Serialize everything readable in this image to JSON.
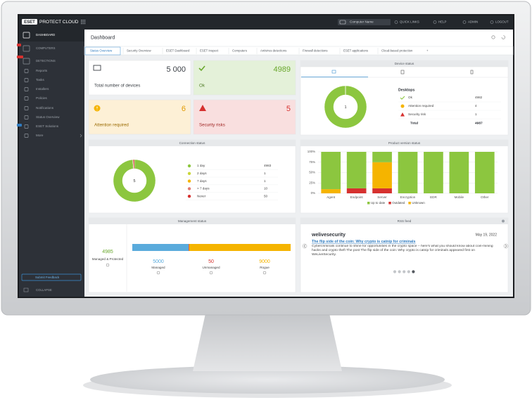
{
  "header": {
    "logo": "ESET",
    "product": "PROTECT CLOUD",
    "search_placeholder": "Computer Name",
    "menu": [
      "QUICK LINKS",
      "HELP",
      "ADMIN",
      "LOGOUT"
    ]
  },
  "sidebar": {
    "items": [
      "DASHBOARD",
      "COMPUTERS",
      "DETECTIONS",
      "Reports",
      "Tasks",
      "Installers",
      "Policies",
      "Notifications",
      "Status Overview",
      "ESET Solutions",
      "More"
    ],
    "feedback": "Submit Feedback",
    "collapse": "COLLAPSE"
  },
  "page": {
    "title": "Dashboard",
    "tabs": [
      "Status Overview",
      "Security Overview",
      "ESET Dashboard",
      "ESET Inspect",
      "Computers",
      "Antivirus detections",
      "Firewall detections",
      "ESET applications",
      "Cloud-based protection",
      "+"
    ]
  },
  "tiles": [
    {
      "value": "5 000",
      "label": "Total number of devices"
    },
    {
      "value": 4989,
      "label": "Ok"
    },
    {
      "value": 6,
      "label": "Attention required"
    },
    {
      "value": 5,
      "label": "Security risks"
    }
  ],
  "rss": {
    "title": "RSS feed",
    "source": "welivesecurity",
    "date": "May 19, 2022",
    "headline": "The flip side of the coin: Why crypto is catnip for criminals",
    "body": "Cybercriminals continue to shine for opportunities in the crypto space – here's what you should know about coin-mining hacks and crypto theft The post The flip side of the coin: Why crypto is catnip for criminals appeared first on WeLiveSecurity."
  },
  "chart_data": [
    {
      "type": "donut",
      "title": "Device status",
      "legend_title": "Desktops",
      "center_value": 1,
      "categories": [
        "Ok",
        "Attention required",
        "Security risk"
      ],
      "values": [
        4982,
        4,
        1
      ],
      "colors": [
        "#8cc63f",
        "#f5b400",
        "#d6312f"
      ],
      "total_label": "Total",
      "total": 4987
    },
    {
      "type": "donut",
      "title": "Connection status",
      "center_value": 5,
      "categories": [
        "1 day",
        "2 days",
        "7 days",
        "> 7 days",
        "Never"
      ],
      "values": [
        4983,
        1,
        1,
        10,
        50
      ],
      "colors": [
        "#8cc63f",
        "#c9d63a",
        "#f5b400",
        "#e07b73",
        "#d6312f"
      ]
    },
    {
      "type": "stacked-bar",
      "title": "Product version status",
      "categories": [
        "Agent",
        "Endpoint",
        "Server",
        "Encryption",
        "EDR",
        "Mobile",
        "Other"
      ],
      "series": [
        {
          "name": "Up to date",
          "color": "#8cc63f",
          "values": [
            90,
            88,
            25,
            100,
            100,
            100,
            100
          ]
        },
        {
          "name": "Outdated",
          "color": "#d6312f",
          "values": [
            0,
            12,
            12,
            0,
            0,
            0,
            0
          ]
        },
        {
          "name": "Unknown",
          "color": "#f5b400",
          "values": [
            10,
            0,
            63,
            0,
            0,
            0,
            0
          ]
        }
      ],
      "ylim": [
        0,
        100
      ],
      "yticks": [
        {
          "value": 0,
          "label": "0%"
        },
        {
          "value": 25,
          "label": "25%"
        },
        {
          "value": 50,
          "label": "50%"
        },
        {
          "value": 75,
          "label": "75%"
        },
        {
          "value": 100,
          "label": "100%"
        }
      ],
      "grid": true,
      "legend": "bottom"
    },
    {
      "type": "proportion-bar",
      "title": "Management status",
      "summary_value": 4985,
      "summary_label": "Managed & Protected",
      "categories": [
        "Managed",
        "Unmanaged",
        "Rogue"
      ],
      "values": [
        5000,
        50,
        9000
      ],
      "colors": [
        "#5aabdc",
        "#d6312f",
        "#f5b400"
      ]
    }
  ]
}
